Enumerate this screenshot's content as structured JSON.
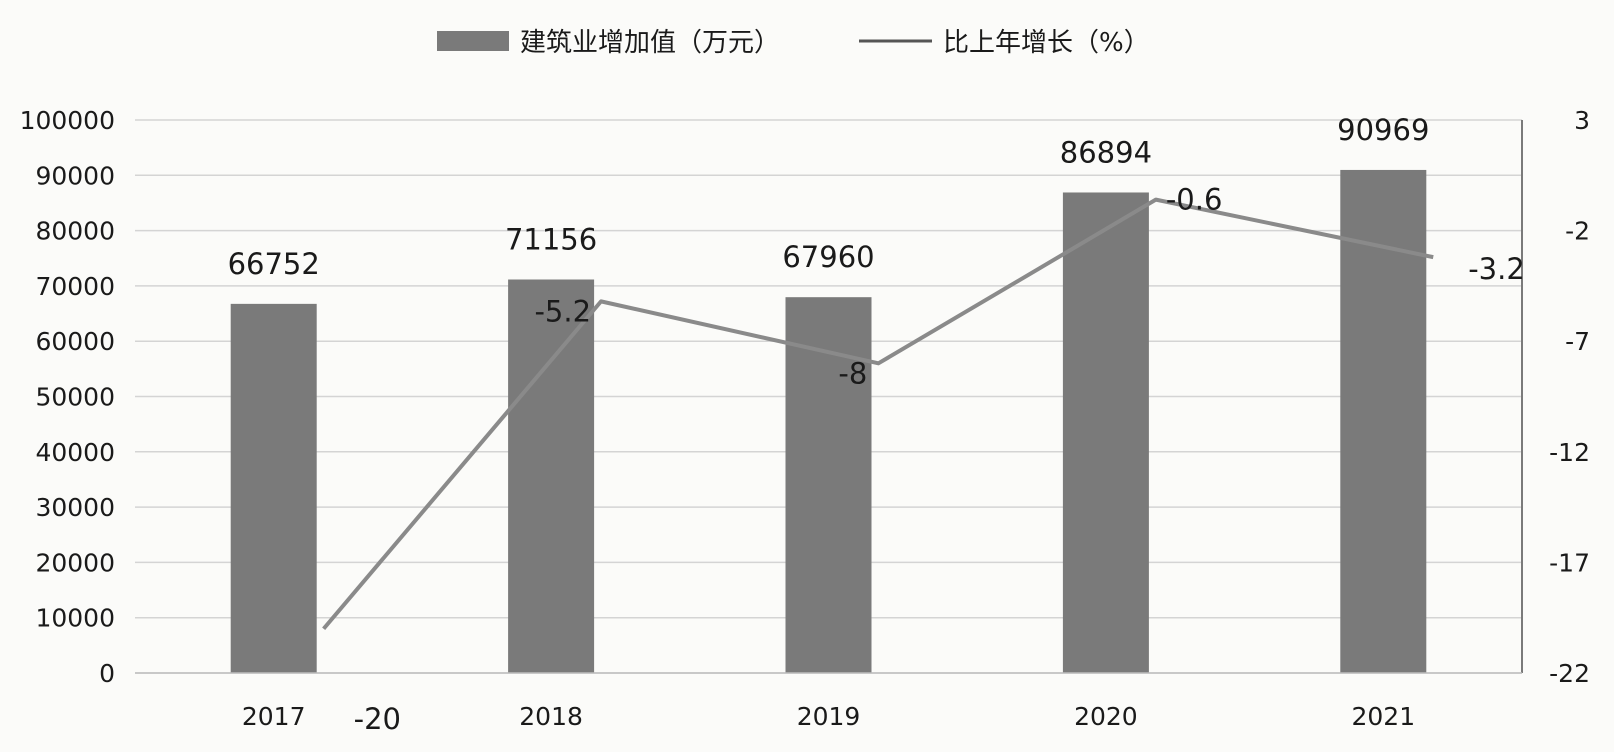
{
  "chart_data": {
    "type": "bar",
    "categories": [
      "2017",
      "2018",
      "2019",
      "2020",
      "2021"
    ],
    "series": [
      {
        "name": "建筑业增加值（万元）",
        "type": "bar",
        "axis": "left",
        "values": [
          66752,
          71156,
          67960,
          86894,
          90969
        ],
        "labels": [
          "66752",
          "71156",
          "67960",
          "86894",
          "90969"
        ],
        "color": "#7a7a7a"
      },
      {
        "name": "比上年增长（%）",
        "type": "line",
        "axis": "right",
        "values": [
          -20,
          -5.2,
          -8,
          -0.6,
          -3.2
        ],
        "labels": [
          "-20",
          "-5.2",
          "-8",
          "-0.6",
          "-3.2"
        ],
        "color": "#8a8a8a"
      }
    ],
    "y_left": {
      "min": 0,
      "max": 100000,
      "ticks": [
        "0",
        "10000",
        "20000",
        "30000",
        "40000",
        "50000",
        "60000",
        "70000",
        "80000",
        "90000",
        "100000"
      ]
    },
    "y_right": {
      "min": -22,
      "max": 3,
      "ticks": [
        "3",
        "-2",
        "-7",
        "-12",
        "-17",
        "-22"
      ]
    },
    "grid": true,
    "legend": "top-center"
  }
}
